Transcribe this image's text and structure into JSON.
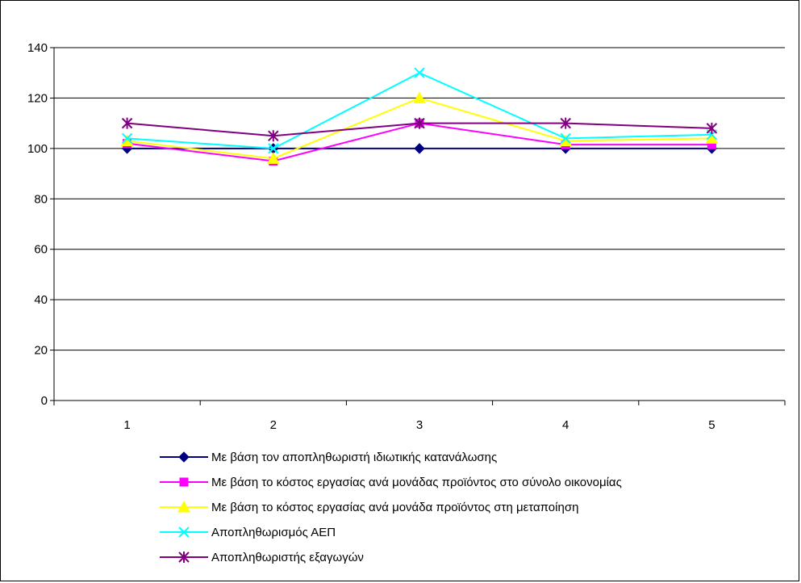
{
  "chart_data": {
    "type": "line",
    "title": "",
    "xlabel": "",
    "ylabel": "",
    "categories": [
      "1",
      "2",
      "3",
      "4",
      "5"
    ],
    "ylim": [
      0,
      140
    ],
    "yticks": [
      "0",
      "20",
      "40",
      "60",
      "80",
      "100",
      "120",
      "140"
    ],
    "grid": true,
    "legend_position": "bottom",
    "series": [
      {
        "name": "Με βάση τον αποπληθωριστή ιδιωτικής κατανάλωσης",
        "values": [
          100,
          100,
          100,
          100,
          100
        ],
        "color": "#000080",
        "marker": "diamond"
      },
      {
        "name": "Με βάση το κόστος εργασίας ανά μονάδας προϊόντος στο σύνολο οικονομίας",
        "values": [
          102,
          95,
          110,
          101.5,
          101.5
        ],
        "color": "#FF00FF",
        "marker": "square"
      },
      {
        "name": "Με βάση το κόστος εργασίας ανά μονάδα προϊόντος στη μεταποίηση",
        "values": [
          103,
          96,
          120,
          103,
          104
        ],
        "color": "#FFFF00",
        "marker": "triangle"
      },
      {
        "name": "Αποπληθωρισμός ΑΕΠ",
        "values": [
          104,
          100,
          130,
          104,
          105.5
        ],
        "color": "#00FFFF",
        "marker": "x"
      },
      {
        "name": "Αποπληθωριστής εξαγωγών",
        "values": [
          110,
          105,
          110,
          110,
          108
        ],
        "color": "#800080",
        "marker": "star"
      }
    ]
  }
}
